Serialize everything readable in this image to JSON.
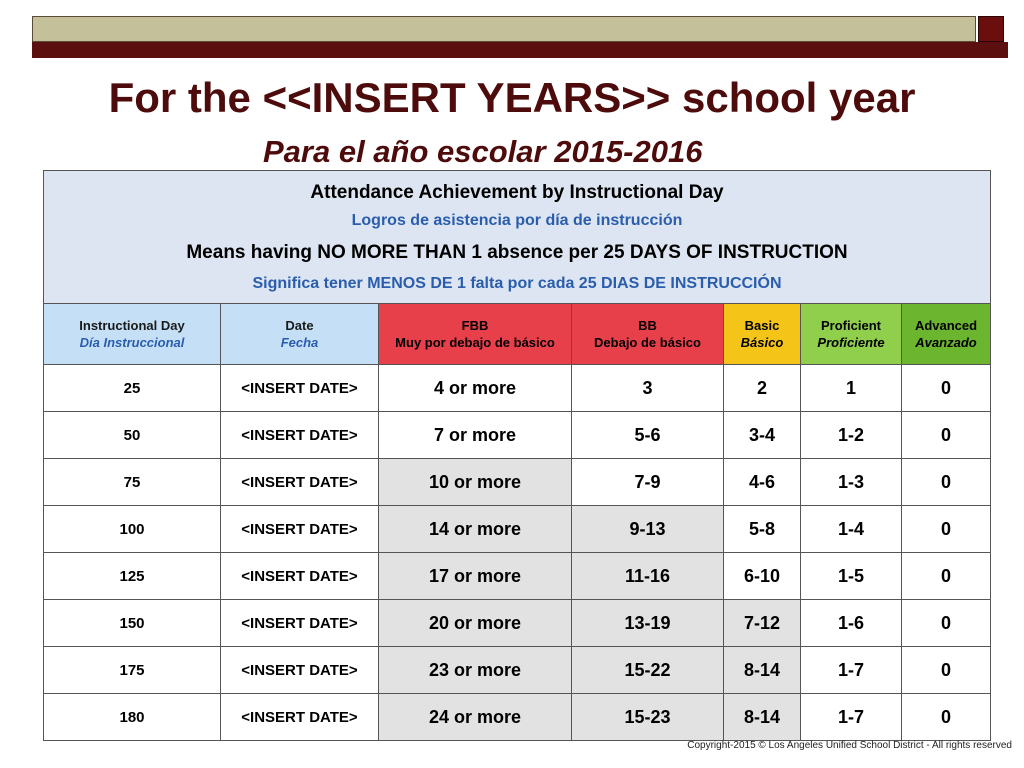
{
  "title": "For the <<INSERT YEARS>> school year",
  "subtitle": "Para el año escolar 2015-2016",
  "header": {
    "line1": "Attendance Achievement by Instructional Day",
    "line2": "Logros de asistencia por día de instrucción",
    "line3": "Means having NO MORE THAN 1 absence per 25 DAYS OF INSTRUCTION",
    "line4": "Significa tener MENOS DE 1 falta por cada 25 DIAS DE INSTRUCCIÓN"
  },
  "columns": [
    {
      "en": "Instructional Day",
      "es": "Día Instruccional",
      "color": "#c5e0f6"
    },
    {
      "en": "Date",
      "es": "Fecha",
      "color": "#c5e0f6"
    },
    {
      "en": "FBB",
      "es": "Muy por debajo de básico",
      "color": "#e8404a"
    },
    {
      "en": "BB",
      "es": "Debajo de básico",
      "color": "#e8404a"
    },
    {
      "en": "Basic",
      "es": "Básico",
      "color": "#f5c418"
    },
    {
      "en": "Proficient",
      "es": "Proficiente",
      "color": "#8fcf4c"
    },
    {
      "en": "Advanced",
      "es": "Avanzado",
      "color": "#6cb52e"
    }
  ],
  "rows": [
    {
      "day": "25",
      "date": "<INSERT DATE>",
      "fbb": "4 or more",
      "bb": "3",
      "basic": "2",
      "prof": "1",
      "adv": "0"
    },
    {
      "day": "50",
      "date": "<INSERT DATE>",
      "fbb": "7 or more",
      "bb": "5-6",
      "basic": "3-4",
      "prof": "1-2",
      "adv": "0"
    },
    {
      "day": "75",
      "date": "<INSERT DATE>",
      "fbb": "10 or more",
      "bb": "7-9",
      "basic": "4-6",
      "prof": "1-3",
      "adv": "0"
    },
    {
      "day": "100",
      "date": "<INSERT DATE>",
      "fbb": "14 or more",
      "bb": "9-13",
      "basic": "5-8",
      "prof": "1-4",
      "adv": "0"
    },
    {
      "day": "125",
      "date": "<INSERT DATE>",
      "fbb": "17 or more",
      "bb": "11-16",
      "basic": "6-10",
      "prof": "1-5",
      "adv": "0"
    },
    {
      "day": "150",
      "date": "<INSERT DATE>",
      "fbb": "20 or more",
      "bb": "13-19",
      "basic": "7-12",
      "prof": "1-6",
      "adv": "0"
    },
    {
      "day": "175",
      "date": "<INSERT DATE>",
      "fbb": "23 or more",
      "bb": "15-22",
      "basic": "8-14",
      "prof": "1-7",
      "adv": "0"
    },
    {
      "day": "180",
      "date": "<INSERT DATE>",
      "fbb": "24 or more",
      "bb": "15-23",
      "basic": "8-14",
      "prof": "1-7",
      "adv": "0"
    }
  ],
  "copyright": "Copyright-2015 © Los Angeles Unified School District - All rights reserved"
}
